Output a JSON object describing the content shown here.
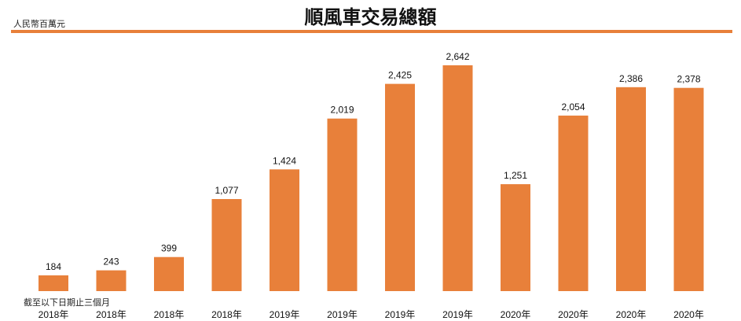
{
  "chart_data": {
    "type": "bar",
    "title": "順風車交易總額",
    "ylabel": "人民幣百萬元",
    "note": "截至以下日期止三個月",
    "categories": [
      "2018年",
      "2018年",
      "2018年",
      "2018年",
      "2019年",
      "2019年",
      "2019年",
      "2019年",
      "2020年",
      "2020年",
      "2020年",
      "2020年"
    ],
    "values": [
      184,
      243,
      399,
      1077,
      1424,
      2019,
      2425,
      2642,
      1251,
      2054,
      2386,
      2378
    ],
    "value_labels": [
      "184",
      "243",
      "399",
      "1,077",
      "1,424",
      "2,019",
      "2,425",
      "2,642",
      "1,251",
      "2,054",
      "2,386",
      "2,378"
    ],
    "ylim": [
      0,
      2642
    ],
    "grid": false,
    "legend": "none",
    "bar_color": "#E8803A",
    "rule_color": "#E8803A"
  }
}
